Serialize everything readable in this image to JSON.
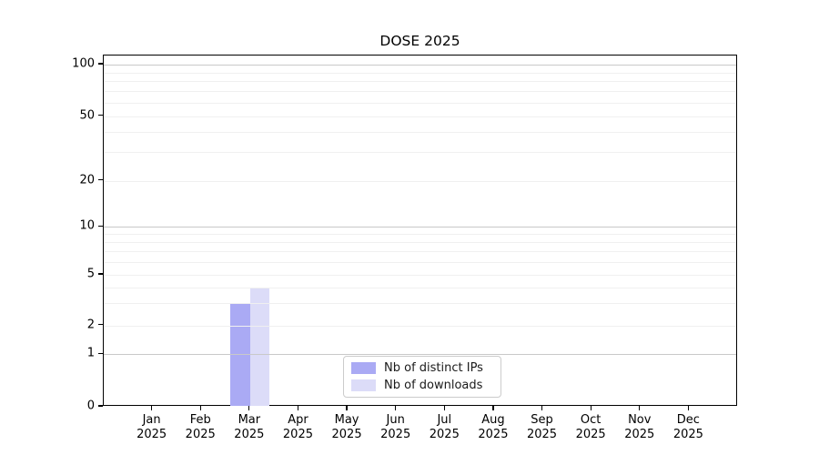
{
  "title": "DOSE 2025",
  "chart_data": {
    "type": "bar",
    "title": "DOSE 2025",
    "categories": [
      "Jan",
      "Feb",
      "Mar",
      "Apr",
      "May",
      "Jun",
      "Jul",
      "Aug",
      "Sep",
      "Oct",
      "Nov",
      "Dec"
    ],
    "category_year": "2025",
    "series": [
      {
        "name": "Nb of distinct IPs",
        "color": "#aaaaf4",
        "values": [
          0,
          0,
          3,
          0,
          0,
          0,
          0,
          0,
          0,
          0,
          0,
          0
        ]
      },
      {
        "name": "Nb of downloads",
        "color": "#dcdcf8",
        "values": [
          0,
          0,
          4,
          0,
          0,
          0,
          0,
          0,
          0,
          0,
          0,
          0
        ]
      }
    ],
    "y_ticks": [
      100,
      50,
      20,
      10,
      5,
      2,
      1,
      0
    ],
    "y_minor_grid": [
      90,
      80,
      70,
      60,
      50,
      40,
      30,
      20,
      9,
      8,
      7,
      6,
      5,
      4,
      3,
      2
    ],
    "y_major_grid": [
      100,
      10,
      1
    ],
    "y_scale": "log above 1, linear 0-1",
    "ylim": [
      0,
      110
    ],
    "grid": "horizontal",
    "legend_position": "lower center",
    "axis_color": "#000000",
    "major_grid_color": "#c9c9c9",
    "minor_grid_color": "#f0f0f0"
  }
}
